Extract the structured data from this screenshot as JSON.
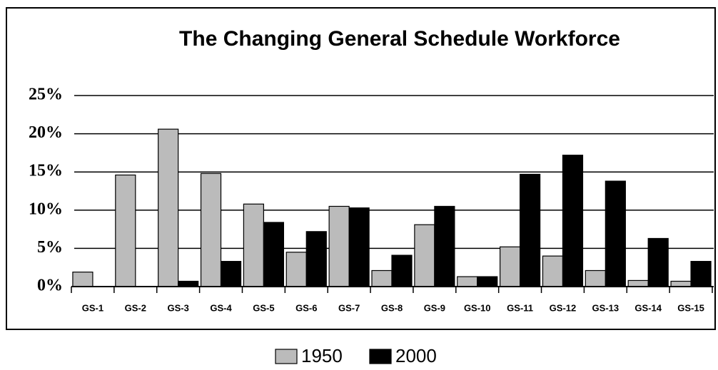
{
  "chart_data": {
    "type": "bar",
    "title": "The Changing General Schedule Workforce",
    "categories": [
      "GS-1",
      "GS-2",
      "GS-3",
      "GS-4",
      "GS-5",
      "GS-6",
      "GS-7",
      "GS-8",
      "GS-9",
      "GS-10",
      "GS-11",
      "GS-12",
      "GS-13",
      "GS-14",
      "GS-15"
    ],
    "series": [
      {
        "name": "1950",
        "color": "#bbbbbb",
        "values": [
          1.9,
          14.6,
          20.6,
          14.8,
          10.8,
          4.5,
          10.5,
          2.1,
          8.1,
          1.3,
          5.2,
          4.0,
          2.1,
          0.8,
          0.7
        ]
      },
      {
        "name": "2000",
        "color": "#000000",
        "values": [
          0,
          0,
          0.7,
          3.3,
          8.4,
          7.2,
          10.3,
          4.1,
          10.5,
          1.3,
          14.7,
          17.2,
          13.8,
          6.3,
          3.3
        ]
      }
    ],
    "ylim": [
      0,
      25
    ],
    "yticks": [
      {
        "value": 0,
        "label": "0%"
      },
      {
        "value": 5,
        "label": "5%"
      },
      {
        "value": 10,
        "label": "10%"
      },
      {
        "value": 15,
        "label": "15%"
      },
      {
        "value": 20,
        "label": "20%"
      },
      {
        "value": 25,
        "label": "25%"
      }
    ],
    "grid": true,
    "legend": "bottom"
  }
}
